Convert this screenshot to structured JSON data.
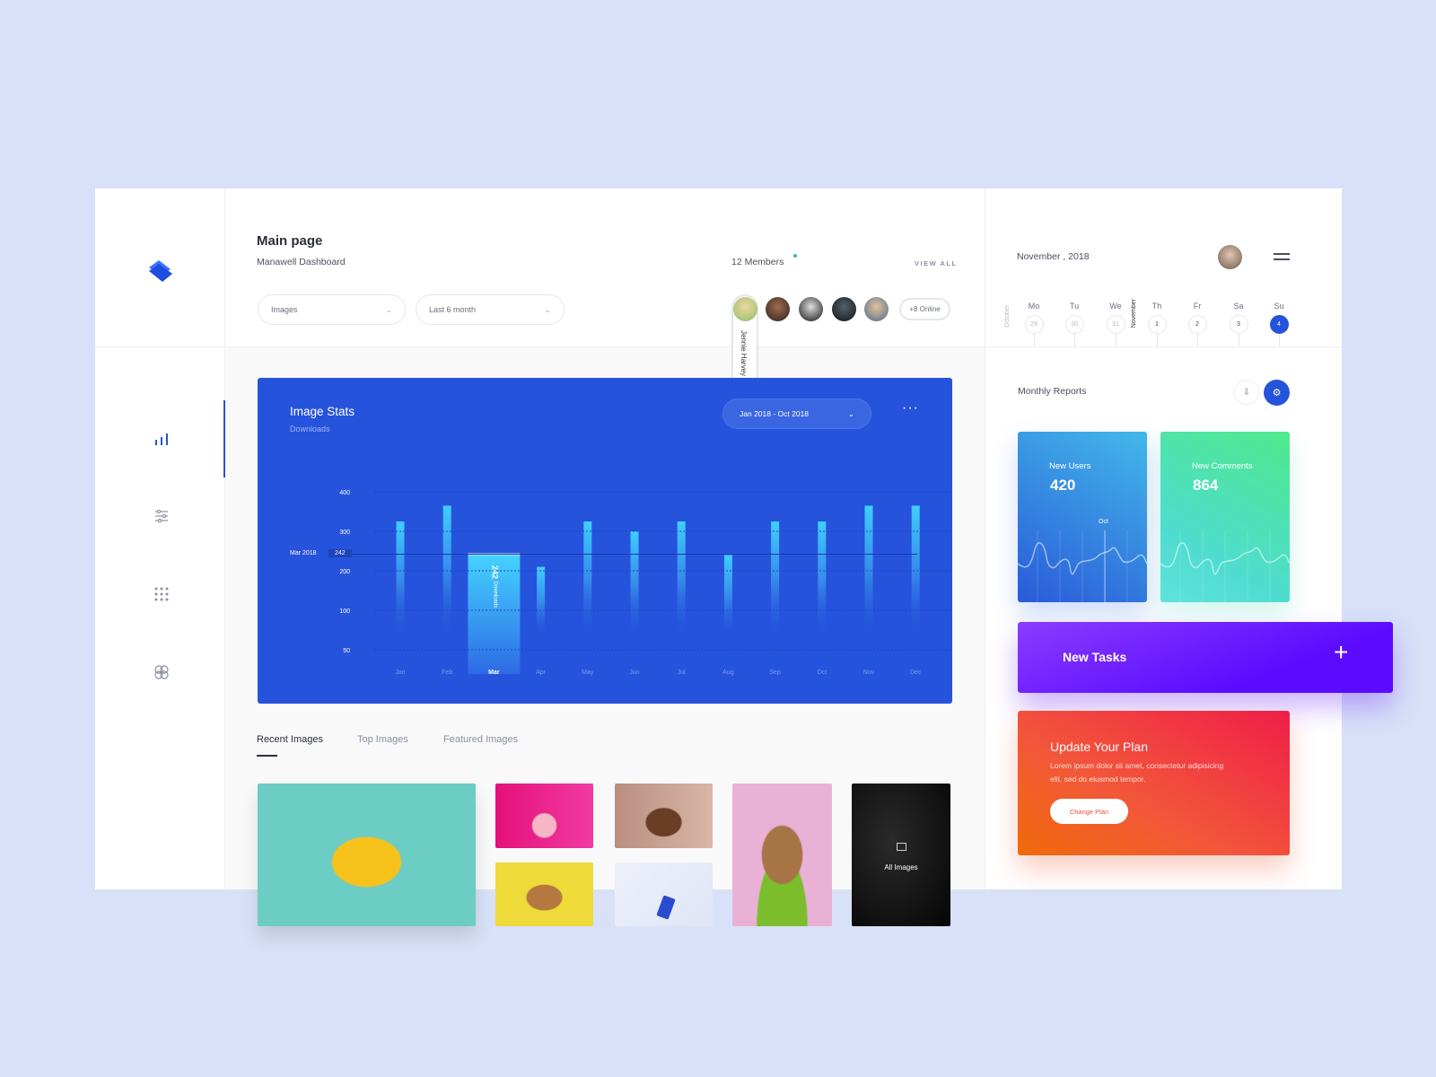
{
  "header": {
    "title": "Main page",
    "subtitle": "Manawell Dashboard"
  },
  "filters": [
    {
      "value": "Images"
    },
    {
      "value": "Last 6 month"
    }
  ],
  "members": {
    "count_label": "12 Members",
    "view_all": "VIEW ALL",
    "online_label": "+8 Online",
    "hover_name": "Jennie Harvey",
    "online_dot_color": "#2ec28a"
  },
  "sidebar": {
    "items": [
      {
        "icon": "bar-chart-icon",
        "active": true
      },
      {
        "icon": "sliders-icon"
      },
      {
        "icon": "grid-icon"
      },
      {
        "icon": "apps-icon"
      }
    ]
  },
  "image_stats": {
    "title": "Image Stats",
    "subtitle": "Downloads",
    "range_label": "Jan 2018 - Oct 2018",
    "marker_label": "Mar 2018",
    "marker_value": "242",
    "selected_bar_label": "242",
    "selected_bar_sublabel": "Downloads"
  },
  "chart_data": {
    "type": "bar",
    "categories": [
      "Jan",
      "Feb",
      "Mar",
      "Apr",
      "May",
      "Jun",
      "Jul",
      "Aug",
      "Sep",
      "Oct",
      "Nov",
      "Dec"
    ],
    "values": [
      325,
      365,
      242,
      210,
      325,
      300,
      325,
      240,
      325,
      325,
      365,
      365
    ],
    "selected": "Mar",
    "yticks": [
      400,
      300,
      200,
      100,
      50
    ],
    "grid": true,
    "bar_color": "#3fd0ff",
    "background": "#2653db"
  },
  "tabs": [
    {
      "label": "Recent Images",
      "active": true
    },
    {
      "label": "Top Images"
    },
    {
      "label": "Featured Images"
    }
  ],
  "gallery": {
    "all_images_label": "All Images"
  },
  "calendar": {
    "title": "November , 2018",
    "prev_month": "October",
    "next_month": "November",
    "days": [
      {
        "name": "Mo",
        "date": "29",
        "muted": true
      },
      {
        "name": "Tu",
        "date": "30",
        "muted": true
      },
      {
        "name": "We",
        "date": "31",
        "muted": true
      },
      {
        "name": "Th",
        "date": "1"
      },
      {
        "name": "Fr",
        "date": "2"
      },
      {
        "name": "Sa",
        "date": "3"
      },
      {
        "name": "Su",
        "date": "4",
        "selected": true
      }
    ]
  },
  "reports": {
    "title": "Monthly Reports",
    "cards": [
      {
        "label": "New Users",
        "value": "420",
        "marker": "Oct"
      },
      {
        "label": "New Comments",
        "value": "864"
      }
    ]
  },
  "tasks": {
    "label": "New Tasks"
  },
  "plan": {
    "title": "Update Your Plan",
    "body": "Lorem ipsum dolor sit amet, consectetur adipisicing elit, sed do eiusmod tempor.",
    "button": "Change Plan"
  },
  "colors": {
    "accent": "#2653db",
    "bar": "#3fd0ff",
    "tasks": "#5b0bff",
    "plan": "#f2593a"
  }
}
